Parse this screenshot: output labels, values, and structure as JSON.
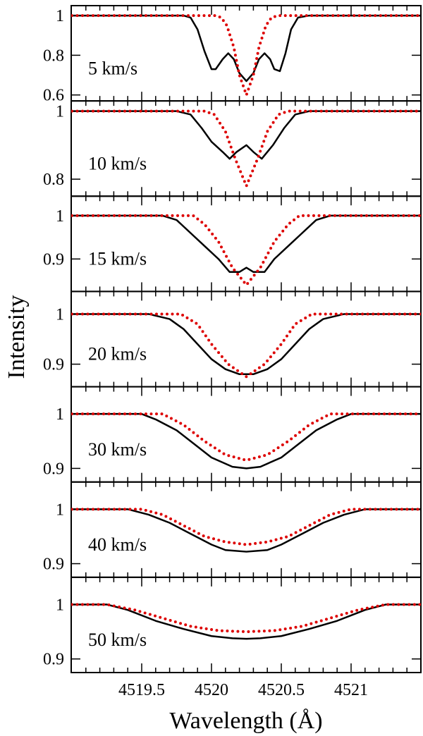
{
  "chart_data": {
    "type": "line",
    "title": "",
    "xlabel": "Wavelength (Å)",
    "ylabel": "Intensity",
    "xlim": [
      4518.995,
      4521.5
    ],
    "x_ticks": [
      4519.5,
      4520,
      4520.5,
      4521
    ],
    "x_tick_labels": [
      "4519.5",
      "4520",
      "4520.5",
      "4521"
    ],
    "legend": "",
    "series_styles": {
      "solid": {
        "color": "#000000",
        "dash": "solid"
      },
      "dotted": {
        "color": "#dd0000",
        "dash": "dotted"
      }
    },
    "panels": [
      {
        "label": "5 km/s",
        "ylim": [
          0.57,
          1.05
        ],
        "y_ticks": [
          0.6,
          0.8,
          1.0
        ],
        "y_tick_labels": [
          "0.6",
          "0.8",
          "1"
        ],
        "series": [
          {
            "name": "solid",
            "points": [
              [
                4519.0,
                1.0
              ],
              [
                4519.8,
                1.0
              ],
              [
                4519.85,
                0.99
              ],
              [
                4519.9,
                0.93
              ],
              [
                4519.95,
                0.82
              ],
              [
                4520.0,
                0.73
              ],
              [
                4520.03,
                0.73
              ],
              [
                4520.08,
                0.78
              ],
              [
                4520.12,
                0.81
              ],
              [
                4520.16,
                0.78
              ],
              [
                4520.2,
                0.71
              ],
              [
                4520.25,
                0.67
              ],
              [
                4520.3,
                0.71
              ],
              [
                4520.34,
                0.78
              ],
              [
                4520.38,
                0.81
              ],
              [
                4520.42,
                0.78
              ],
              [
                4520.45,
                0.73
              ],
              [
                4520.49,
                0.72
              ],
              [
                4520.53,
                0.81
              ],
              [
                4520.57,
                0.93
              ],
              [
                4520.62,
                0.99
              ],
              [
                4520.7,
                1.0
              ],
              [
                4521.5,
                1.0
              ]
            ]
          },
          {
            "name": "dotted",
            "points": [
              [
                4519.0,
                1.0
              ],
              [
                4520.03,
                1.0
              ],
              [
                4520.07,
                0.99
              ],
              [
                4520.11,
                0.95
              ],
              [
                4520.16,
                0.84
              ],
              [
                4520.2,
                0.7
              ],
              [
                4520.25,
                0.6
              ],
              [
                4520.3,
                0.7
              ],
              [
                4520.34,
                0.84
              ],
              [
                4520.39,
                0.95
              ],
              [
                4520.43,
                0.99
              ],
              [
                4520.48,
                1.0
              ],
              [
                4521.5,
                1.0
              ]
            ]
          }
        ]
      },
      {
        "label": "10 km/s",
        "ylim": [
          0.75,
          1.03
        ],
        "y_ticks": [
          0.8,
          1.0
        ],
        "y_tick_labels": [
          "0.8",
          "1"
        ],
        "series": [
          {
            "name": "solid",
            "points": [
              [
                4519.0,
                1.0
              ],
              [
                4519.75,
                1.0
              ],
              [
                4519.85,
                0.99
              ],
              [
                4519.93,
                0.95
              ],
              [
                4520.0,
                0.91
              ],
              [
                4520.08,
                0.88
              ],
              [
                4520.13,
                0.86
              ],
              [
                4520.18,
                0.88
              ],
              [
                4520.25,
                0.9
              ],
              [
                4520.3,
                0.88
              ],
              [
                4520.36,
                0.86
              ],
              [
                4520.44,
                0.9
              ],
              [
                4520.52,
                0.95
              ],
              [
                4520.6,
                0.99
              ],
              [
                4520.7,
                1.0
              ],
              [
                4521.5,
                1.0
              ]
            ]
          },
          {
            "name": "dotted",
            "points": [
              [
                4519.0,
                1.0
              ],
              [
                4519.95,
                1.0
              ],
              [
                4520.02,
                0.99
              ],
              [
                4520.1,
                0.94
              ],
              [
                4520.17,
                0.86
              ],
              [
                4520.25,
                0.78
              ],
              [
                4520.33,
                0.86
              ],
              [
                4520.4,
                0.94
              ],
              [
                4520.48,
                0.99
              ],
              [
                4520.55,
                1.0
              ],
              [
                4521.5,
                1.0
              ]
            ]
          }
        ]
      },
      {
        "label": "15 km/s",
        "ylim": [
          0.825,
          1.045
        ],
        "y_ticks": [
          0.9,
          1.0
        ],
        "y_tick_labels": [
          "0.9",
          "1"
        ],
        "series": [
          {
            "name": "solid",
            "points": [
              [
                4519.0,
                1.0
              ],
              [
                4519.65,
                1.0
              ],
              [
                4519.75,
                0.99
              ],
              [
                4519.85,
                0.96
              ],
              [
                4519.95,
                0.93
              ],
              [
                4520.05,
                0.9
              ],
              [
                4520.13,
                0.87
              ],
              [
                4520.2,
                0.87
              ],
              [
                4520.25,
                0.88
              ],
              [
                4520.3,
                0.87
              ],
              [
                4520.38,
                0.87
              ],
              [
                4520.45,
                0.9
              ],
              [
                4520.55,
                0.93
              ],
              [
                4520.65,
                0.96
              ],
              [
                4520.75,
                0.99
              ],
              [
                4520.85,
                1.0
              ],
              [
                4521.5,
                1.0
              ]
            ]
          },
          {
            "name": "dotted",
            "points": [
              [
                4519.0,
                1.0
              ],
              [
                4519.87,
                1.0
              ],
              [
                4519.95,
                0.98
              ],
              [
                4520.05,
                0.94
              ],
              [
                4520.15,
                0.88
              ],
              [
                4520.25,
                0.84
              ],
              [
                4520.35,
                0.88
              ],
              [
                4520.45,
                0.94
              ],
              [
                4520.55,
                0.98
              ],
              [
                4520.63,
                1.0
              ],
              [
                4521.5,
                1.0
              ]
            ]
          }
        ]
      },
      {
        "label": "20 km/s",
        "ylim": [
          0.855,
          1.045
        ],
        "y_ticks": [
          0.9,
          1.0
        ],
        "y_tick_labels": [
          "0.9",
          "1"
        ],
        "series": [
          {
            "name": "solid",
            "points": [
              [
                4519.0,
                1.0
              ],
              [
                4519.55,
                1.0
              ],
              [
                4519.7,
                0.99
              ],
              [
                4519.8,
                0.97
              ],
              [
                4519.9,
                0.94
              ],
              [
                4520.0,
                0.91
              ],
              [
                4520.1,
                0.89
              ],
              [
                4520.2,
                0.88
              ],
              [
                4520.25,
                0.88
              ],
              [
                4520.3,
                0.88
              ],
              [
                4520.4,
                0.89
              ],
              [
                4520.5,
                0.91
              ],
              [
                4520.6,
                0.94
              ],
              [
                4520.7,
                0.97
              ],
              [
                4520.8,
                0.99
              ],
              [
                4520.95,
                1.0
              ],
              [
                4521.5,
                1.0
              ]
            ]
          },
          {
            "name": "dotted",
            "points": [
              [
                4519.0,
                1.0
              ],
              [
                4519.78,
                1.0
              ],
              [
                4519.9,
                0.98
              ],
              [
                4520.0,
                0.94
              ],
              [
                4520.12,
                0.9
              ],
              [
                4520.25,
                0.875
              ],
              [
                4520.38,
                0.9
              ],
              [
                4520.5,
                0.94
              ],
              [
                4520.6,
                0.98
              ],
              [
                4520.72,
                1.0
              ],
              [
                4521.5,
                1.0
              ]
            ]
          }
        ]
      },
      {
        "label": "30 km/s",
        "ylim": [
          0.875,
          1.05
        ],
        "y_ticks": [
          0.9,
          1.0
        ],
        "y_tick_labels": [
          "0.9",
          "1"
        ],
        "series": [
          {
            "name": "solid",
            "points": [
              [
                4519.0,
                1.0
              ],
              [
                4519.5,
                1.0
              ],
              [
                4519.6,
                0.99
              ],
              [
                4519.75,
                0.97
              ],
              [
                4519.9,
                0.94
              ],
              [
                4520.0,
                0.92
              ],
              [
                4520.15,
                0.903
              ],
              [
                4520.25,
                0.9
              ],
              [
                4520.35,
                0.903
              ],
              [
                4520.5,
                0.92
              ],
              [
                4520.6,
                0.94
              ],
              [
                4520.75,
                0.97
              ],
              [
                4520.9,
                0.99
              ],
              [
                4521.0,
                1.0
              ],
              [
                4521.5,
                1.0
              ]
            ]
          },
          {
            "name": "dotted",
            "points": [
              [
                4519.0,
                1.0
              ],
              [
                4519.65,
                1.0
              ],
              [
                4519.8,
                0.98
              ],
              [
                4519.95,
                0.95
              ],
              [
                4520.1,
                0.925
              ],
              [
                4520.25,
                0.915
              ],
              [
                4520.4,
                0.925
              ],
              [
                4520.55,
                0.95
              ],
              [
                4520.7,
                0.98
              ],
              [
                4520.85,
                1.0
              ],
              [
                4521.5,
                1.0
              ]
            ]
          }
        ]
      },
      {
        "label": "40 km/s",
        "ylim": [
          0.875,
          1.05
        ],
        "y_ticks": [
          0.9,
          1.0
        ],
        "y_tick_labels": [
          "0.9",
          "1"
        ],
        "series": [
          {
            "name": "solid",
            "points": [
              [
                4519.0,
                1.0
              ],
              [
                4519.4,
                1.0
              ],
              [
                4519.55,
                0.99
              ],
              [
                4519.7,
                0.975
              ],
              [
                4519.85,
                0.955
              ],
              [
                4520.0,
                0.935
              ],
              [
                4520.1,
                0.925
              ],
              [
                4520.25,
                0.922
              ],
              [
                4520.4,
                0.925
              ],
              [
                4520.5,
                0.935
              ],
              [
                4520.65,
                0.955
              ],
              [
                4520.8,
                0.975
              ],
              [
                4520.95,
                0.99
              ],
              [
                4521.1,
                1.0
              ],
              [
                4521.5,
                1.0
              ]
            ]
          },
          {
            "name": "dotted",
            "points": [
              [
                4519.0,
                1.0
              ],
              [
                4519.5,
                1.0
              ],
              [
                4519.65,
                0.99
              ],
              [
                4519.8,
                0.97
              ],
              [
                4519.95,
                0.95
              ],
              [
                4520.1,
                0.94
              ],
              [
                4520.25,
                0.935
              ],
              [
                4520.4,
                0.94
              ],
              [
                4520.55,
                0.95
              ],
              [
                4520.7,
                0.97
              ],
              [
                4520.85,
                0.99
              ],
              [
                4521.0,
                1.0
              ],
              [
                4521.5,
                1.0
              ]
            ]
          }
        ]
      },
      {
        "label": "50 km/s",
        "ylim": [
          0.875,
          1.05
        ],
        "y_ticks": [
          0.9,
          1.0
        ],
        "y_tick_labels": [
          "0.9",
          "1"
        ],
        "series": [
          {
            "name": "solid",
            "points": [
              [
                4519.0,
                1.0
              ],
              [
                4519.25,
                1.0
              ],
              [
                4519.4,
                0.99
              ],
              [
                4519.6,
                0.97
              ],
              [
                4519.8,
                0.955
              ],
              [
                4520.0,
                0.942
              ],
              [
                4520.15,
                0.938
              ],
              [
                4520.25,
                0.937
              ],
              [
                4520.35,
                0.938
              ],
              [
                4520.5,
                0.942
              ],
              [
                4520.7,
                0.955
              ],
              [
                4520.9,
                0.97
              ],
              [
                4521.1,
                0.99
              ],
              [
                4521.25,
                1.0
              ],
              [
                4521.5,
                1.0
              ]
            ]
          },
          {
            "name": "dotted",
            "points": [
              [
                4519.0,
                1.0
              ],
              [
                4519.25,
                1.0
              ],
              [
                4519.45,
                0.99
              ],
              [
                4519.65,
                0.975
              ],
              [
                4519.85,
                0.96
              ],
              [
                4520.05,
                0.952
              ],
              [
                4520.25,
                0.95
              ],
              [
                4520.45,
                0.952
              ],
              [
                4520.65,
                0.96
              ],
              [
                4520.85,
                0.975
              ],
              [
                4521.05,
                0.99
              ],
              [
                4521.25,
                1.0
              ],
              [
                4521.5,
                1.0
              ]
            ]
          }
        ]
      }
    ]
  }
}
